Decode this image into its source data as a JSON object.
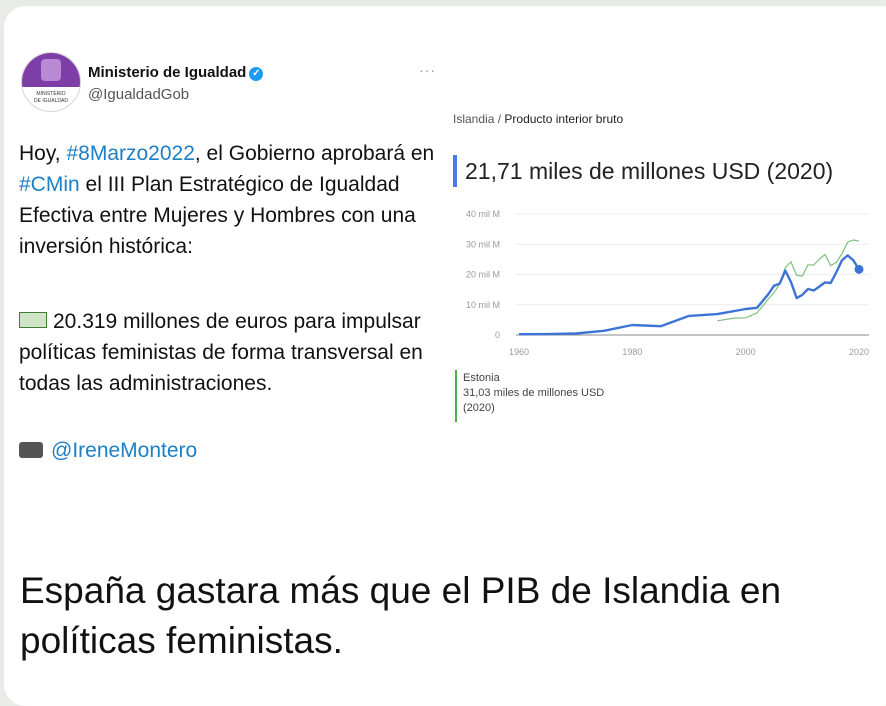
{
  "tweet": {
    "account_name": "Ministerio de Igualdad",
    "handle": "@IgualdadGob",
    "avatar_text_line1": "MINISTERIO",
    "avatar_text_line2": "DE IGUALDAD",
    "more_label": "···",
    "text_prefix": "Hoy, ",
    "hashtag1": "#8Marzo2022",
    "text_mid": ", el Gobierno aprobará en ",
    "hashtag2": "#CMin",
    "text_suffix": " el III Plan Estratégico de Igualdad Efectiva entre Mujeres y Hombres con una inversión histórica:",
    "paragraph2": "20.319 millones de euros para impulsar políticas feministas de forma transversal en todas las administraciones.",
    "mention": "@IreneMontero"
  },
  "panel": {
    "crumb_country": "Islandia",
    "crumb_sep": " / ",
    "crumb_metric": "Producto interior bruto",
    "headline_value": "21,71 miles de millones USD (2020)",
    "compare_country": "Estonia",
    "compare_value": "31,03 miles de millones USD",
    "compare_year": "(2020)"
  },
  "chart_data": {
    "type": "line",
    "x_ticks": [
      "1960",
      "1980",
      "2000",
      "2020"
    ],
    "y_ticks": [
      "0",
      "10 mil M",
      "20 mil M",
      "30 mil M",
      "40 mil M"
    ],
    "ylim": [
      0,
      40
    ],
    "xlim": [
      1960,
      2020
    ],
    "grid": true,
    "series": [
      {
        "name": "Islandia",
        "color": "#3d74d6",
        "x": [
          1960,
          1965,
          1970,
          1975,
          1980,
          1985,
          1990,
          1995,
          2000,
          2002,
          2004,
          2005,
          2006,
          2007,
          2008,
          2009,
          2010,
          2011,
          2012,
          2013,
          2014,
          2015,
          2016,
          2017,
          2018,
          2019,
          2020
        ],
        "y": [
          0.25,
          0.3,
          0.5,
          1.4,
          3.3,
          2.9,
          6.3,
          6.9,
          8.6,
          9.0,
          13.5,
          16.3,
          17.0,
          21.3,
          17.5,
          12.2,
          13.3,
          15.2,
          14.7,
          16.0,
          17.4,
          17.2,
          20.7,
          24.7,
          26.3,
          24.7,
          21.7
        ]
      },
      {
        "name": "Estonia",
        "color": "#7fc17c",
        "x": [
          1995,
          1998,
          2000,
          2002,
          2004,
          2005,
          2006,
          2007,
          2008,
          2009,
          2010,
          2011,
          2012,
          2013,
          2014,
          2015,
          2016,
          2017,
          2018,
          2019,
          2020
        ],
        "y": [
          4.7,
          5.6,
          5.7,
          7.3,
          11.9,
          14.0,
          16.9,
          22.3,
          24.2,
          19.7,
          19.5,
          23.2,
          23.1,
          25.1,
          26.6,
          22.9,
          24.0,
          26.9,
          30.7,
          31.4,
          31.0
        ]
      }
    ]
  },
  "caption": "España gastara más que el PIB de Islandia en políticas feministas."
}
